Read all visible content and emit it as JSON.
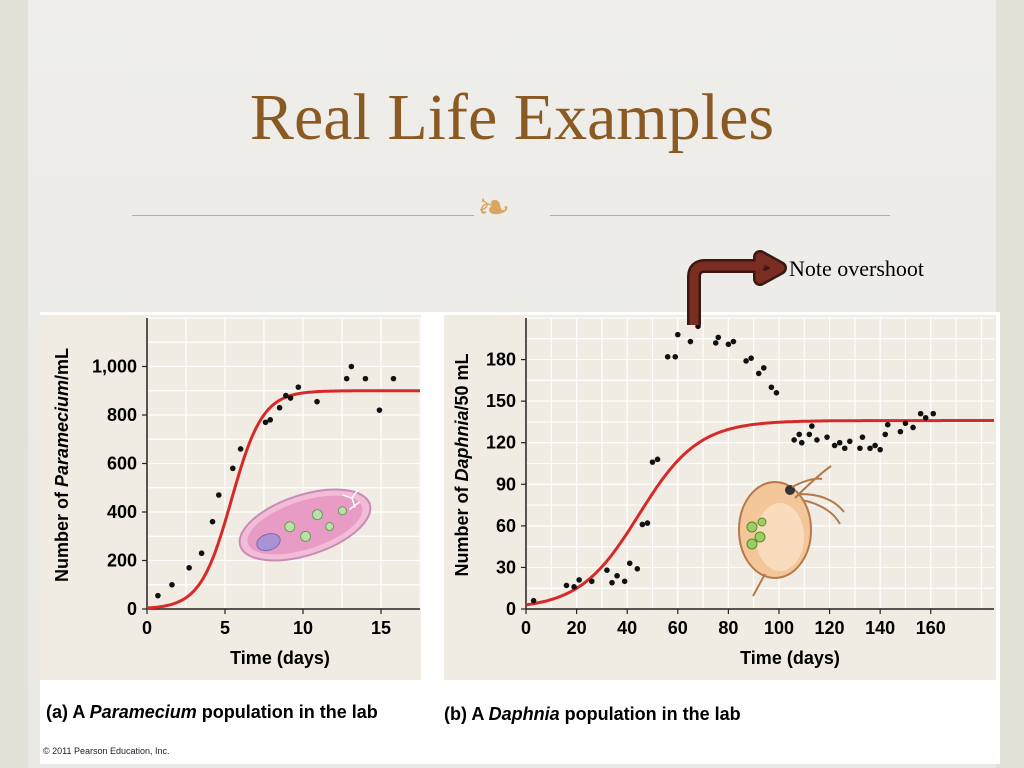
{
  "slide": {
    "title": "Real Life Examples",
    "ornament_glyph": "❧",
    "note": "Note overshoot",
    "colors": {
      "title": "#8b5a22",
      "accent": "#d9a760",
      "curve": "#d62a2a",
      "arrow": "#7a2e22"
    }
  },
  "captions": {
    "a_prefix": "(a) A ",
    "a_species": "Paramecium",
    "a_suffix": " population in the lab",
    "b_prefix": "(b) A ",
    "b_species": "Daphnia",
    "b_suffix": " population in the lab"
  },
  "copyright": "© 2011 Pearson Education, Inc.",
  "chart_data": [
    {
      "type": "scatter",
      "ylabel_prefix": "Number of ",
      "ylabel_species": "Paramecium",
      "ylabel_suffix": "/mL",
      "xlabel": "Time (days)",
      "xlim": [
        0,
        17.5
      ],
      "ylim": [
        0,
        1200
      ],
      "xticks": [
        0,
        5,
        10,
        15
      ],
      "yticks": [
        0,
        200,
        400,
        600,
        800,
        1000
      ],
      "ytick_labels": [
        "0",
        "200",
        "400",
        "600",
        "800",
        "1,000"
      ],
      "grid": true,
      "curve": {
        "type": "logistic",
        "carrying_capacity": 900,
        "initial": 4,
        "rate": 1.0
      },
      "points": [
        [
          0.7,
          55
        ],
        [
          1.6,
          100
        ],
        [
          2.7,
          170
        ],
        [
          3.5,
          230
        ],
        [
          4.2,
          360
        ],
        [
          4.6,
          470
        ],
        [
          5.5,
          580
        ],
        [
          6.0,
          660
        ],
        [
          7.6,
          770
        ],
        [
          7.9,
          780
        ],
        [
          8.5,
          830
        ],
        [
          8.9,
          880
        ],
        [
          9.2,
          870
        ],
        [
          9.7,
          915
        ],
        [
          10.9,
          855
        ],
        [
          12.8,
          950
        ],
        [
          13.1,
          1000
        ],
        [
          14.0,
          950
        ],
        [
          14.9,
          820
        ],
        [
          15.8,
          950
        ]
      ]
    },
    {
      "type": "scatter",
      "ylabel_prefix": "Number of ",
      "ylabel_species": "Daphnia",
      "ylabel_suffix": "/50 mL",
      "xlabel": "Time (days)",
      "xlim": [
        0,
        185
      ],
      "ylim": [
        0,
        210
      ],
      "xticks": [
        0,
        20,
        40,
        60,
        80,
        100,
        120,
        140,
        160
      ],
      "yticks": [
        0,
        30,
        60,
        90,
        120,
        150,
        180
      ],
      "grid": true,
      "curve": {
        "type": "logistic",
        "carrying_capacity": 136,
        "initial": 3,
        "rate": 0.085
      },
      "points": [
        [
          3,
          6
        ],
        [
          16,
          17
        ],
        [
          19,
          16
        ],
        [
          21,
          21
        ],
        [
          26,
          20
        ],
        [
          32,
          28
        ],
        [
          34,
          19
        ],
        [
          36,
          24
        ],
        [
          39,
          20
        ],
        [
          41,
          33
        ],
        [
          44,
          29
        ],
        [
          46,
          61
        ],
        [
          48,
          62
        ],
        [
          50,
          106
        ],
        [
          52,
          108
        ],
        [
          56,
          182
        ],
        [
          59,
          182
        ],
        [
          60,
          198
        ],
        [
          65,
          193
        ],
        [
          68,
          204
        ],
        [
          75,
          192
        ],
        [
          76,
          196
        ],
        [
          80,
          191
        ],
        [
          82,
          193
        ],
        [
          87,
          179
        ],
        [
          89,
          181
        ],
        [
          92,
          170
        ],
        [
          94,
          174
        ],
        [
          97,
          160
        ],
        [
          99,
          156
        ],
        [
          106,
          122
        ],
        [
          108,
          126
        ],
        [
          109,
          120
        ],
        [
          112,
          126
        ],
        [
          113,
          132
        ],
        [
          115,
          122
        ],
        [
          119,
          124
        ],
        [
          122,
          118
        ],
        [
          124,
          120
        ],
        [
          126,
          116
        ],
        [
          128,
          121
        ],
        [
          132,
          116
        ],
        [
          133,
          124
        ],
        [
          136,
          116
        ],
        [
          138,
          118
        ],
        [
          140,
          115
        ],
        [
          142,
          126
        ],
        [
          143,
          133
        ],
        [
          148,
          128
        ],
        [
          150,
          134
        ],
        [
          153,
          131
        ],
        [
          156,
          141
        ],
        [
          158,
          138
        ],
        [
          161,
          141
        ]
      ]
    }
  ]
}
